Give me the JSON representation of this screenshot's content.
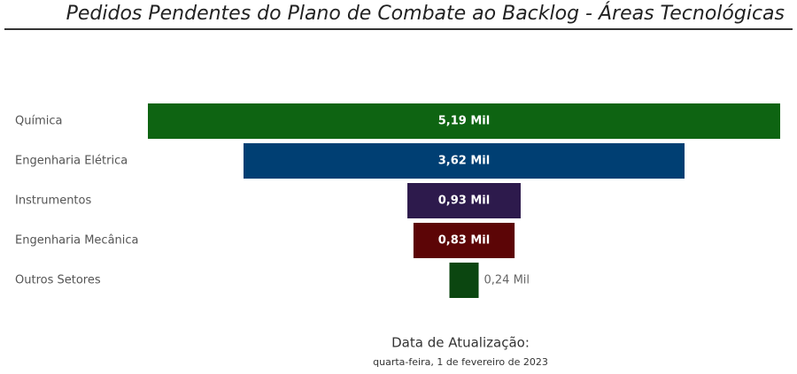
{
  "chart_data": {
    "type": "funnel",
    "title": "Pedidos Pendentes do Plano de Combate ao Backlog - Áreas Tecnológicas",
    "categories": [
      "Química",
      "Engenharia Elétrica",
      "Instrumentos",
      "Engenharia Mecânica",
      "Outros Setores"
    ],
    "values": [
      5.19,
      3.62,
      0.93,
      0.83,
      0.24
    ],
    "value_labels": [
      "5,19 Mil",
      "3,62 Mil",
      "0,93 Mil",
      "0,83 Mil",
      "0,24 Mil"
    ],
    "colors": [
      "#0e6412",
      "#003f73",
      "#2d1a4c",
      "#5c0506",
      "#0b4610"
    ],
    "annotations": [
      "Data de Atualização:",
      "quarta-feira, 1 de fevereiro de 2023"
    ]
  }
}
